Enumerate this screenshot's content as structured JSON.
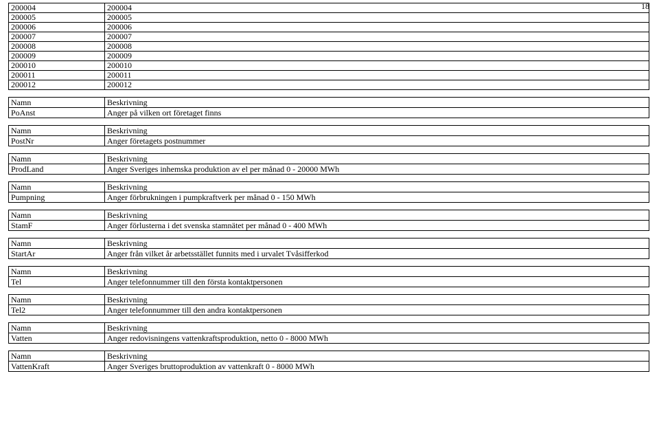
{
  "page_number": "18",
  "num_table": {
    "rows": [
      [
        "200004",
        "200004"
      ],
      [
        "200005",
        "200005"
      ],
      [
        "200006",
        "200006"
      ],
      [
        "200007",
        "200007"
      ],
      [
        "200008",
        "200008"
      ],
      [
        "200009",
        "200009"
      ],
      [
        "200010",
        "200010"
      ],
      [
        "200011",
        "200011"
      ],
      [
        "200012",
        "200012"
      ]
    ]
  },
  "header_labels": {
    "name": "Namn",
    "desc": "Beskrivning"
  },
  "defs": [
    {
      "name": "PoAnst",
      "desc": "Anger på vilken ort företaget finns"
    },
    {
      "name": "PostNr",
      "desc": "Anger företagets postnummer"
    },
    {
      "name": "ProdLand",
      "desc": "Anger Sveriges inhemska produktion av el per månad 0 - 20000 MWh"
    },
    {
      "name": "Pumpning",
      "desc": "Anger förbrukningen i pumpkraftverk per månad 0 - 150 MWh"
    },
    {
      "name": "StamF",
      "desc": "Anger förlusterna i det svenska stamnätet per månad 0 - 400 MWh"
    },
    {
      "name": "StartAr",
      "desc": "Anger från vilket år arbetsstället funnits med i urvalet Tvåsifferkod"
    },
    {
      "name": "Tel",
      "desc": "Anger telefonnummer till den första kontaktpersonen"
    },
    {
      "name": "Tel2",
      "desc": "Anger telefonnummer till den andra kontaktpersonen"
    },
    {
      "name": "Vatten",
      "desc": "Anger redovisningens vattenkraftsproduktion, netto 0 - 8000 MWh"
    },
    {
      "name": "VattenKraft",
      "desc": "Anger Sveriges bruttoproduktion av vattenkraft 0 - 8000 MWh"
    }
  ]
}
